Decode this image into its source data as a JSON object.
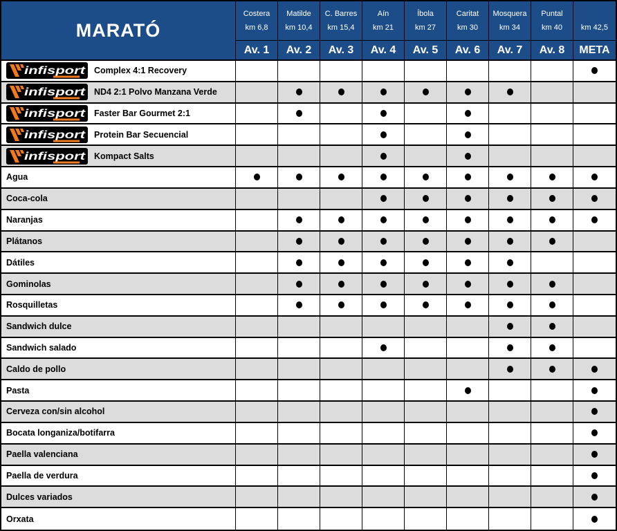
{
  "title": "MARATÓ",
  "logo_text": "infisport",
  "colors": {
    "header_blue": "#1d4d89",
    "header_text": "#ffffff",
    "row_shade": "#dcdcdc",
    "row_white": "#ffffff",
    "grid_line": "#000000",
    "dot": "#000000",
    "logo_background": "#000000",
    "logo_orange": "#f07b1e",
    "logo_text_color": "#ffffff",
    "label_text": "#000000"
  },
  "stations": [
    {
      "name": "Costera",
      "km": "km 6,8",
      "label": "Av. 1"
    },
    {
      "name": "Matilde",
      "km": "km 10,4",
      "label": "Av. 2"
    },
    {
      "name": "C. Barres",
      "km": "km 15,4",
      "label": "Av. 3"
    },
    {
      "name": "Aín",
      "km": "km 21",
      "label": "Av. 4"
    },
    {
      "name": "Íbola",
      "km": "km 27",
      "label": "Av. 5"
    },
    {
      "name": "Caritat",
      "km": "km 30",
      "label": "Av. 6"
    },
    {
      "name": "Mosquera",
      "km": "km 34",
      "label": "Av. 7"
    },
    {
      "name": "Puntal",
      "km": "km 40",
      "label": "Av. 8"
    },
    {
      "name": "",
      "km": "km 42,5",
      "label": "META"
    }
  ],
  "rows": [
    {
      "label": "Complex 4:1 Recovery",
      "brand": true,
      "shaded": false,
      "availability": [
        0,
        0,
        0,
        0,
        0,
        0,
        0,
        0,
        1
      ]
    },
    {
      "label": "ND4 2:1 Polvo Manzana Verde",
      "brand": true,
      "shaded": true,
      "availability": [
        0,
        1,
        1,
        1,
        1,
        1,
        1,
        0,
        0
      ]
    },
    {
      "label": "Faster Bar Gourmet 2:1",
      "brand": true,
      "shaded": false,
      "availability": [
        0,
        1,
        0,
        1,
        0,
        1,
        0,
        0,
        0
      ]
    },
    {
      "label": "Protein Bar Secuencial",
      "brand": true,
      "shaded": false,
      "availability": [
        0,
        0,
        0,
        1,
        0,
        1,
        0,
        0,
        0
      ]
    },
    {
      "label": "Kompact Salts",
      "brand": true,
      "shaded": true,
      "availability": [
        0,
        0,
        0,
        1,
        0,
        1,
        0,
        0,
        0
      ]
    },
    {
      "label": "Agua",
      "brand": false,
      "shaded": false,
      "availability": [
        1,
        1,
        1,
        1,
        1,
        1,
        1,
        1,
        1
      ]
    },
    {
      "label": "Coca-cola",
      "brand": false,
      "shaded": true,
      "availability": [
        0,
        0,
        0,
        1,
        1,
        1,
        1,
        1,
        1
      ]
    },
    {
      "label": "Naranjas",
      "brand": false,
      "shaded": false,
      "availability": [
        0,
        1,
        1,
        1,
        1,
        1,
        1,
        1,
        1
      ]
    },
    {
      "label": "Plátanos",
      "brand": false,
      "shaded": true,
      "availability": [
        0,
        1,
        1,
        1,
        1,
        1,
        1,
        1,
        0
      ]
    },
    {
      "label": "Dátiles",
      "brand": false,
      "shaded": false,
      "availability": [
        0,
        1,
        1,
        1,
        1,
        1,
        1,
        0,
        0
      ]
    },
    {
      "label": "Gominolas",
      "brand": false,
      "shaded": true,
      "availability": [
        0,
        1,
        1,
        1,
        1,
        1,
        1,
        1,
        0
      ]
    },
    {
      "label": "Rosquilletas",
      "brand": false,
      "shaded": false,
      "availability": [
        0,
        1,
        1,
        1,
        1,
        1,
        1,
        1,
        0
      ]
    },
    {
      "label": "Sandwich dulce",
      "brand": false,
      "shaded": true,
      "availability": [
        0,
        0,
        0,
        0,
        0,
        0,
        1,
        1,
        0
      ]
    },
    {
      "label": "Sandwich salado",
      "brand": false,
      "shaded": false,
      "availability": [
        0,
        0,
        0,
        1,
        0,
        0,
        1,
        1,
        0
      ]
    },
    {
      "label": "Caldo de pollo",
      "brand": false,
      "shaded": true,
      "availability": [
        0,
        0,
        0,
        0,
        0,
        0,
        1,
        1,
        1
      ]
    },
    {
      "label": "Pasta",
      "brand": false,
      "shaded": false,
      "availability": [
        0,
        0,
        0,
        0,
        0,
        1,
        0,
        0,
        1
      ]
    },
    {
      "label": "Cerveza con/sin alcohol",
      "brand": false,
      "shaded": true,
      "availability": [
        0,
        0,
        0,
        0,
        0,
        0,
        0,
        0,
        1
      ]
    },
    {
      "label": "Bocata longaniza/botifarra",
      "brand": false,
      "shaded": false,
      "availability": [
        0,
        0,
        0,
        0,
        0,
        0,
        0,
        0,
        1
      ]
    },
    {
      "label": "Paella valenciana",
      "brand": false,
      "shaded": true,
      "availability": [
        0,
        0,
        0,
        0,
        0,
        0,
        0,
        0,
        1
      ]
    },
    {
      "label": "Paella de verdura",
      "brand": false,
      "shaded": false,
      "availability": [
        0,
        0,
        0,
        0,
        0,
        0,
        0,
        0,
        1
      ]
    },
    {
      "label": "Dulces variados",
      "brand": false,
      "shaded": true,
      "availability": [
        0,
        0,
        0,
        0,
        0,
        0,
        0,
        0,
        1
      ]
    },
    {
      "label": "Orxata",
      "brand": false,
      "shaded": false,
      "availability": [
        0,
        0,
        0,
        0,
        0,
        0,
        0,
        0,
        1
      ]
    }
  ]
}
